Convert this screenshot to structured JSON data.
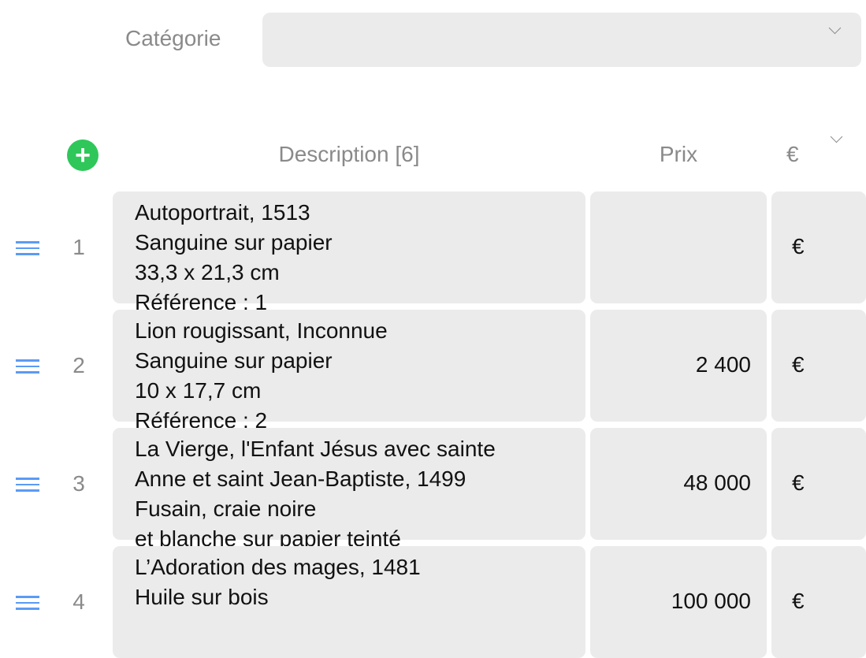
{
  "filter": {
    "category_label": "Catégorie",
    "category_value": ""
  },
  "table": {
    "headers": {
      "description": "Description [6]",
      "price": "Prix",
      "currency": "€"
    },
    "rows": [
      {
        "number": "1",
        "description": "Autoportrait, 1513\nSanguine sur papier\n33,3 x 21,3 cm\nRéférence : 1",
        "price": "",
        "currency": "€"
      },
      {
        "number": "2",
        "description": "Lion rougissant, Inconnue\nSanguine sur papier\n10 x 17,7 cm\nRéférence : 2",
        "price": "2 400",
        "currency": "€"
      },
      {
        "number": "3",
        "description": "La Vierge, l'Enfant Jésus avec sainte\nAnne et saint Jean-Baptiste, 1499\nFusain, craie noire\net blanche sur papier teinté",
        "price": "48 000",
        "currency": "€"
      },
      {
        "number": "4",
        "description": "L’Adoration des mages, 1481\nHuile sur bois",
        "price": "100 000",
        "currency": "€"
      }
    ]
  },
  "colors": {
    "add_button": "#2fc75a",
    "drag_handle": "#5b9bf5",
    "cell_bg": "#ebebeb"
  }
}
